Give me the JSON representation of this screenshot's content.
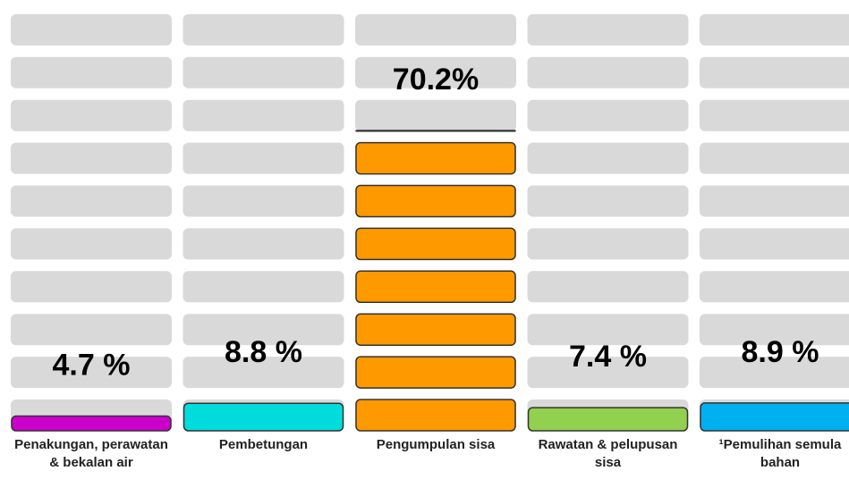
{
  "chart_data": {
    "type": "block",
    "categories": [
      "Penakungan, perawatan & bekalan air",
      "Pembetungan",
      "Pengumpulan sisa",
      "Rawatan & pelupusan sisa",
      "¹Pemulihan semula bahan"
    ],
    "values": [
      4.7,
      8.8,
      70.2,
      7.4,
      8.9
    ],
    "value_labels": [
      "4.7 %",
      "8.8 %",
      "70.2%",
      "7.4 %",
      "8.9 %"
    ],
    "colors": [
      "#cc00cc",
      "#00dcdc",
      "#ff9900",
      "#92d050",
      "#00b0f0"
    ],
    "ylim": [
      0,
      100
    ]
  }
}
